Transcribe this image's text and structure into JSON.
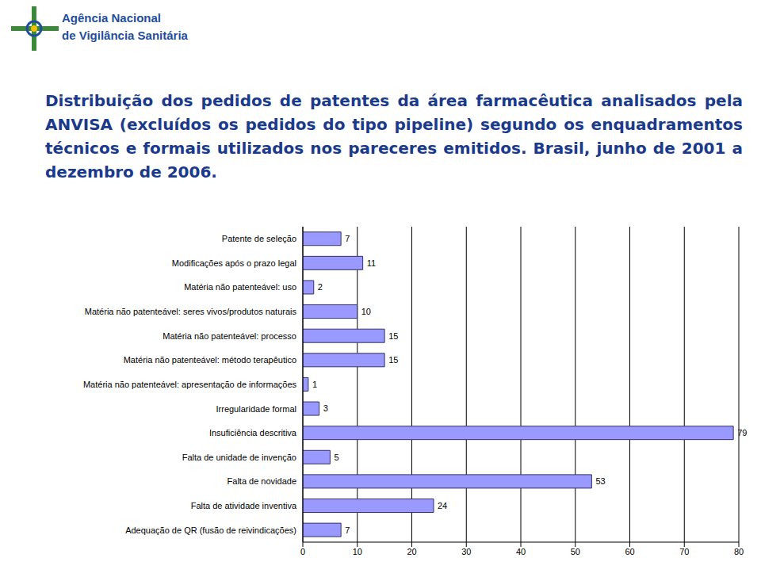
{
  "header": [
    "Agência Nacional",
    "de Vigilância Sanitária"
  ],
  "chart_data": {
    "type": "bar",
    "orientation": "horizontal",
    "title": "Distribuição dos pedidos de patentes da área farmacêutica analisados pela ANVISA (excluídos os pedidos do tipo pipeline) segundo os enquadramentos técnicos e formais utilizados nos pareceres emitidos. Brasil, junho de 2001 a dezembro de 2006.",
    "categories": [
      "Patente de seleção",
      "Modificações após o prazo legal",
      "Matéria não patenteável: uso",
      "Matéria não patenteável: seres vivos/produtos naturais",
      "Matéria não patenteável: processo",
      "Matéria não patenteável: método terapêutico",
      "Matéria não patenteável: apresentação de informações",
      "Irregularidade formal",
      "Insuficiência descritiva",
      "Falta de unidade de invenção",
      "Falta de novidade",
      "Falta de atividade inventiva",
      "Adequação de QR (fusão de reivindicações)"
    ],
    "values": [
      7,
      11,
      2,
      10,
      15,
      15,
      1,
      3,
      79,
      5,
      53,
      24,
      7
    ],
    "color": "#9999ff",
    "xlim": [
      0,
      80
    ],
    "xticks": [
      0,
      10,
      20,
      30,
      40,
      50,
      60,
      70,
      80
    ],
    "grid": true,
    "data_labels": true
  }
}
